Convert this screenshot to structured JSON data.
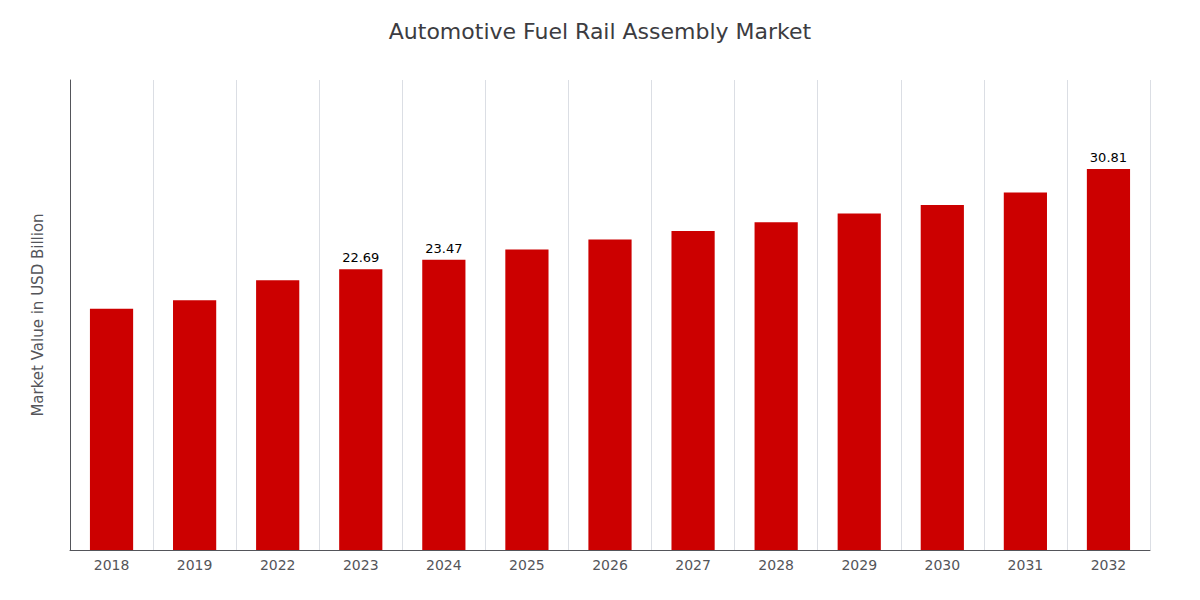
{
  "chart_data": {
    "type": "bar",
    "title": "Automotive Fuel Rail Assembly Market",
    "ylabel": "Market Value in USD Billion",
    "categories": [
      "2018",
      "2019",
      "2022",
      "2023",
      "2024",
      "2025",
      "2026",
      "2027",
      "2028",
      "2029",
      "2030",
      "2031",
      "2032"
    ],
    "values": [
      19.5,
      20.2,
      21.8,
      22.69,
      23.47,
      24.3,
      25.1,
      25.8,
      26.5,
      27.2,
      27.9,
      28.9,
      30.81
    ],
    "value_labels": [
      null,
      null,
      null,
      "22.69",
      "23.47",
      null,
      null,
      null,
      null,
      null,
      null,
      null,
      "30.81"
    ],
    "color": "#CC0000",
    "ylim": [
      0,
      38
    ],
    "grid": true,
    "tick_labels": "x"
  }
}
